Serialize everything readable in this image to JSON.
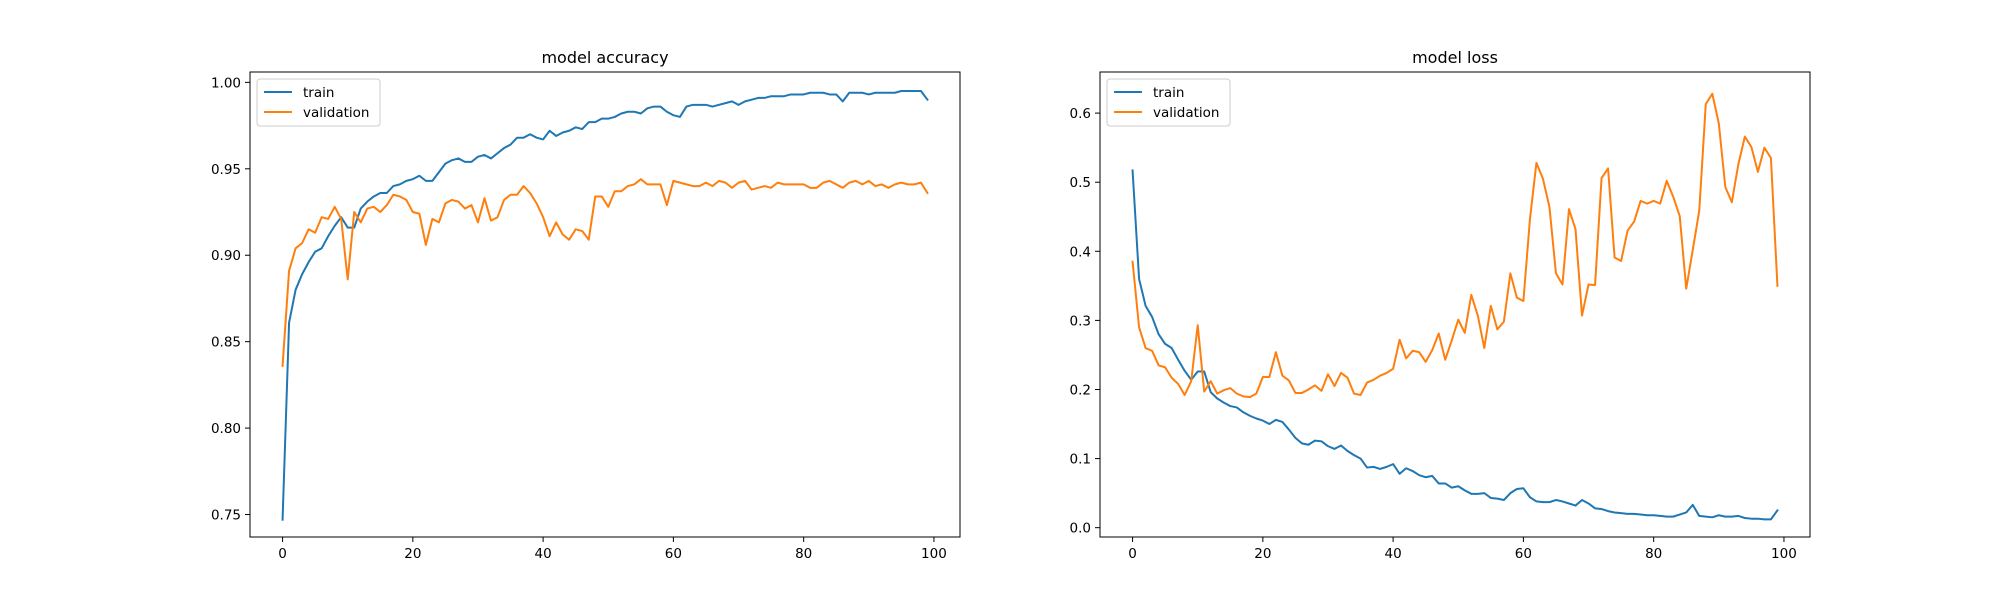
{
  "chart_data": [
    {
      "type": "line",
      "title": "model accuracy",
      "xlabel": "",
      "ylabel": "",
      "xlim": [
        -5,
        104
      ],
      "ylim": [
        0.737,
        1.006
      ],
      "x_ticks": [
        0,
        20,
        40,
        60,
        80,
        100
      ],
      "x_tick_labels": [
        "0",
        "20",
        "40",
        "60",
        "80",
        "100"
      ],
      "y_ticks": [
        0.75,
        0.8,
        0.85,
        0.9,
        0.95,
        1.0
      ],
      "y_tick_labels": [
        "0.75",
        "0.80",
        "0.85",
        "0.90",
        "0.95",
        "1.00"
      ],
      "grid": false,
      "legend_position": "upper-left",
      "x": [
        0,
        1,
        2,
        3,
        4,
        5,
        6,
        7,
        8,
        9,
        10,
        11,
        12,
        13,
        14,
        15,
        16,
        17,
        18,
        19,
        20,
        21,
        22,
        23,
        24,
        25,
        26,
        27,
        28,
        29,
        30,
        31,
        32,
        33,
        34,
        35,
        36,
        37,
        38,
        39,
        40,
        41,
        42,
        43,
        44,
        45,
        46,
        47,
        48,
        49,
        50,
        51,
        52,
        53,
        54,
        55,
        56,
        57,
        58,
        59,
        60,
        61,
        62,
        63,
        64,
        65,
        66,
        67,
        68,
        69,
        70,
        71,
        72,
        73,
        74,
        75,
        76,
        77,
        78,
        79,
        80,
        81,
        82,
        83,
        84,
        85,
        86,
        87,
        88,
        89,
        90,
        91,
        92,
        93,
        94,
        95,
        96,
        97,
        98,
        99
      ],
      "series": [
        {
          "name": "train",
          "color": "#1f77b4",
          "values": [
            0.747,
            0.861,
            0.88,
            0.889,
            0.896,
            0.902,
            0.904,
            0.911,
            0.917,
            0.922,
            0.916,
            0.916,
            0.927,
            0.931,
            0.934,
            0.936,
            0.936,
            0.94,
            0.941,
            0.943,
            0.944,
            0.946,
            0.943,
            0.943,
            0.948,
            0.953,
            0.955,
            0.956,
            0.954,
            0.954,
            0.957,
            0.958,
            0.956,
            0.959,
            0.962,
            0.964,
            0.968,
            0.968,
            0.97,
            0.968,
            0.967,
            0.972,
            0.969,
            0.971,
            0.972,
            0.974,
            0.973,
            0.977,
            0.977,
            0.979,
            0.979,
            0.98,
            0.982,
            0.983,
            0.983,
            0.982,
            0.985,
            0.986,
            0.986,
            0.983,
            0.981,
            0.98,
            0.986,
            0.987,
            0.987,
            0.987,
            0.986,
            0.987,
            0.988,
            0.989,
            0.987,
            0.989,
            0.99,
            0.991,
            0.991,
            0.992,
            0.992,
            0.992,
            0.993,
            0.993,
            0.993,
            0.994,
            0.994,
            0.994,
            0.993,
            0.993,
            0.989,
            0.994,
            0.994,
            0.994,
            0.993,
            0.994,
            0.994,
            0.994,
            0.994,
            0.995,
            0.995,
            0.995,
            0.995,
            0.99
          ]
        },
        {
          "name": "validation",
          "color": "#ff7f0e",
          "values": [
            0.836,
            0.891,
            0.904,
            0.907,
            0.915,
            0.913,
            0.922,
            0.921,
            0.928,
            0.921,
            0.886,
            0.925,
            0.919,
            0.927,
            0.928,
            0.925,
            0.929,
            0.935,
            0.934,
            0.932,
            0.925,
            0.924,
            0.906,
            0.921,
            0.919,
            0.93,
            0.932,
            0.931,
            0.927,
            0.929,
            0.919,
            0.933,
            0.92,
            0.922,
            0.932,
            0.935,
            0.935,
            0.94,
            0.936,
            0.93,
            0.922,
            0.911,
            0.919,
            0.912,
            0.909,
            0.915,
            0.914,
            0.909,
            0.934,
            0.934,
            0.928,
            0.937,
            0.937,
            0.94,
            0.941,
            0.944,
            0.941,
            0.941,
            0.941,
            0.929,
            0.943,
            0.942,
            0.941,
            0.94,
            0.94,
            0.942,
            0.94,
            0.943,
            0.942,
            0.939,
            0.942,
            0.943,
            0.938,
            0.939,
            0.94,
            0.939,
            0.942,
            0.941,
            0.941,
            0.941,
            0.941,
            0.939,
            0.939,
            0.942,
            0.943,
            0.941,
            0.939,
            0.942,
            0.943,
            0.941,
            0.943,
            0.94,
            0.941,
            0.939,
            0.941,
            0.942,
            0.941,
            0.941,
            0.942,
            0.936
          ]
        }
      ]
    },
    {
      "type": "line",
      "title": "model loss",
      "xlabel": "",
      "ylabel": "",
      "xlim": [
        -5,
        104
      ],
      "ylim": [
        -0.0135,
        0.6595
      ],
      "x_ticks": [
        0,
        20,
        40,
        60,
        80,
        100
      ],
      "x_tick_labels": [
        "0",
        "20",
        "40",
        "60",
        "80",
        "100"
      ],
      "y_ticks": [
        0.0,
        0.1,
        0.2,
        0.3,
        0.4,
        0.5,
        0.6
      ],
      "y_tick_labels": [
        "0.0",
        "0.1",
        "0.2",
        "0.3",
        "0.4",
        "0.5",
        "0.6"
      ],
      "grid": false,
      "legend_position": "upper-left",
      "x": [
        0,
        1,
        2,
        3,
        4,
        5,
        6,
        7,
        8,
        9,
        10,
        11,
        12,
        13,
        14,
        15,
        16,
        17,
        18,
        19,
        20,
        21,
        22,
        23,
        24,
        25,
        26,
        27,
        28,
        29,
        30,
        31,
        32,
        33,
        34,
        35,
        36,
        37,
        38,
        39,
        40,
        41,
        42,
        43,
        44,
        45,
        46,
        47,
        48,
        49,
        50,
        51,
        52,
        53,
        54,
        55,
        56,
        57,
        58,
        59,
        60,
        61,
        62,
        63,
        64,
        65,
        66,
        67,
        68,
        69,
        70,
        71,
        72,
        73,
        74,
        75,
        76,
        77,
        78,
        79,
        80,
        81,
        82,
        83,
        84,
        85,
        86,
        87,
        88,
        89,
        90,
        91,
        92,
        93,
        94,
        95,
        96,
        97,
        98,
        99
      ],
      "series": [
        {
          "name": "train",
          "color": "#1f77b4",
          "values": [
            0.517,
            0.36,
            0.321,
            0.305,
            0.28,
            0.266,
            0.26,
            0.243,
            0.227,
            0.214,
            0.226,
            0.226,
            0.196,
            0.187,
            0.181,
            0.176,
            0.174,
            0.167,
            0.162,
            0.158,
            0.155,
            0.15,
            0.156,
            0.153,
            0.142,
            0.13,
            0.122,
            0.12,
            0.126,
            0.125,
            0.118,
            0.114,
            0.119,
            0.111,
            0.105,
            0.1,
            0.087,
            0.088,
            0.085,
            0.088,
            0.092,
            0.078,
            0.086,
            0.082,
            0.076,
            0.073,
            0.075,
            0.064,
            0.064,
            0.058,
            0.06,
            0.054,
            0.049,
            0.049,
            0.05,
            0.043,
            0.042,
            0.04,
            0.05,
            0.056,
            0.057,
            0.044,
            0.038,
            0.037,
            0.037,
            0.04,
            0.038,
            0.035,
            0.032,
            0.04,
            0.035,
            0.028,
            0.027,
            0.024,
            0.022,
            0.021,
            0.02,
            0.02,
            0.019,
            0.018,
            0.018,
            0.017,
            0.016,
            0.016,
            0.019,
            0.022,
            0.033,
            0.017,
            0.016,
            0.015,
            0.018,
            0.016,
            0.016,
            0.017,
            0.014,
            0.013,
            0.013,
            0.012,
            0.012,
            0.025
          ]
        },
        {
          "name": "validation",
          "color": "#ff7f0e",
          "values": [
            0.385,
            0.29,
            0.26,
            0.256,
            0.235,
            0.232,
            0.217,
            0.208,
            0.192,
            0.212,
            0.293,
            0.197,
            0.212,
            0.194,
            0.199,
            0.202,
            0.194,
            0.19,
            0.189,
            0.194,
            0.218,
            0.218,
            0.254,
            0.22,
            0.213,
            0.195,
            0.195,
            0.2,
            0.206,
            0.198,
            0.222,
            0.205,
            0.224,
            0.217,
            0.194,
            0.192,
            0.21,
            0.214,
            0.22,
            0.224,
            0.23,
            0.272,
            0.245,
            0.256,
            0.254,
            0.24,
            0.257,
            0.281,
            0.243,
            0.271,
            0.301,
            0.282,
            0.337,
            0.307,
            0.26,
            0.321,
            0.287,
            0.298,
            0.368,
            0.333,
            0.328,
            0.446,
            0.528,
            0.505,
            0.464,
            0.368,
            0.352,
            0.461,
            0.432,
            0.307,
            0.352,
            0.351,
            0.506,
            0.52,
            0.391,
            0.386,
            0.43,
            0.443,
            0.473,
            0.469,
            0.473,
            0.469,
            0.502,
            0.479,
            0.451,
            0.346,
            0.402,
            0.459,
            0.613,
            0.628,
            0.585,
            0.493,
            0.471,
            0.526,
            0.566,
            0.551,
            0.515,
            0.55,
            0.535,
            0.35
          ]
        }
      ]
    }
  ]
}
